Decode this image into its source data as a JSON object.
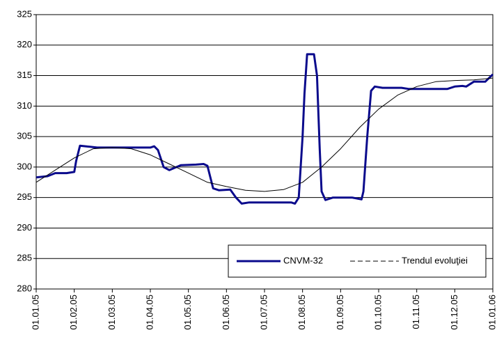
{
  "chart_data": {
    "type": "line",
    "xlim": [
      0,
      12
    ],
    "xticks": [
      {
        "value": 0,
        "label": "01.01.05"
      },
      {
        "value": 1,
        "label": "01.02.05"
      },
      {
        "value": 2,
        "label": "01.03.05"
      },
      {
        "value": 3,
        "label": "01.04.05"
      },
      {
        "value": 4,
        "label": "01.05.05"
      },
      {
        "value": 5,
        "label": "01.06.05"
      },
      {
        "value": 6,
        "label": "01.07.05"
      },
      {
        "value": 7,
        "label": "01.08.05"
      },
      {
        "value": 8,
        "label": "01.09.05"
      },
      {
        "value": 9,
        "label": "01.10.05"
      },
      {
        "value": 10,
        "label": "01.11.05"
      },
      {
        "value": 11,
        "label": "01.12.05"
      },
      {
        "value": 12,
        "label": "01.01.06"
      }
    ],
    "ylim": [
      280,
      325
    ],
    "yticks": [
      280,
      285,
      290,
      295,
      300,
      305,
      310,
      315,
      320,
      325
    ],
    "grid": true,
    "legend": "lower-right",
    "series": [
      {
        "name": "CNVM-32",
        "color": "#0a0a8c",
        "x": [
          0,
          0.3,
          0.5,
          0.8,
          1.0,
          1.05,
          1.15,
          1.3,
          1.6,
          2,
          2.5,
          2.8,
          3.0,
          3.1,
          3.2,
          3.35,
          3.5,
          3.8,
          4.2,
          4.4,
          4.5,
          4.65,
          4.8,
          5.1,
          5.25,
          5.4,
          5.6,
          6,
          6.5,
          6.7,
          6.8,
          6.9,
          7.0,
          7.05,
          7.12,
          7.3,
          7.38,
          7.45,
          7.5,
          7.6,
          7.8,
          8.3,
          8.55,
          8.6,
          8.7,
          8.8,
          8.9,
          9.1,
          9.6,
          9.8,
          10.3,
          10.8,
          11,
          11.2,
          11.3,
          11.5,
          11.8,
          12
        ],
        "values": [
          298.3,
          298.5,
          299,
          299,
          299.2,
          301,
          303.5,
          303.4,
          303.2,
          303.2,
          303.2,
          303.2,
          303.2,
          303.4,
          302.8,
          300,
          299.5,
          300.3,
          300.4,
          300.5,
          300.2,
          296.5,
          296.2,
          296.3,
          295,
          294,
          294.2,
          294.2,
          294.2,
          294.2,
          294,
          295,
          305,
          312,
          318.5,
          318.5,
          315,
          303,
          296,
          294.6,
          295,
          295,
          294.7,
          296,
          305,
          312.5,
          313.2,
          313,
          313,
          312.8,
          312.8,
          312.8,
          313.2,
          313.3,
          313.2,
          314,
          314,
          315.2
        ]
      },
      {
        "name": "Trendul evoluţiei",
        "color": "#000000",
        "x": [
          0,
          0.5,
          1,
          1.5,
          2,
          2.5,
          3,
          3.5,
          4,
          4.5,
          5,
          5.5,
          6,
          6.5,
          7,
          7.5,
          8,
          8.5,
          9,
          9.5,
          10,
          10.5,
          11,
          11.5,
          12
        ],
        "values": [
          297.5,
          299.5,
          301.5,
          303,
          303.2,
          303,
          302,
          300.5,
          299,
          297.5,
          296.8,
          296.2,
          296,
          296.3,
          297.5,
          300,
          303,
          306.5,
          309.5,
          311.8,
          313.2,
          314,
          314.2,
          314.3,
          314.6
        ]
      }
    ]
  }
}
